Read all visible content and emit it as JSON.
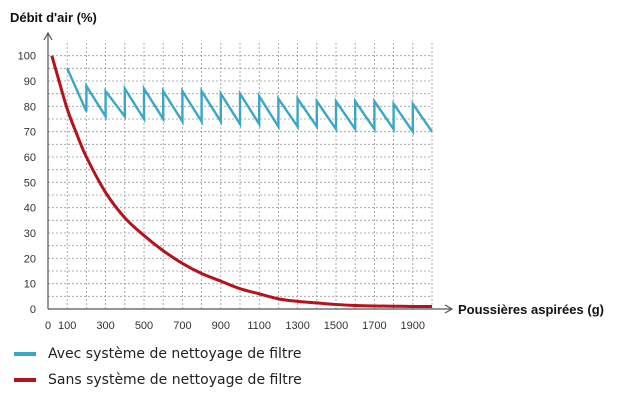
{
  "chart_data": {
    "type": "line",
    "ylabel": "Débit d'air (%)",
    "xlabel": "Poussières aspirées (g)",
    "xlim": [
      0,
      2000
    ],
    "ylim": [
      0,
      105
    ],
    "grid": true,
    "legend_position": "bottom-left",
    "x_ticks": [
      0,
      100,
      300,
      500,
      700,
      900,
      1100,
      1300,
      1500,
      1700,
      1900
    ],
    "y_ticks": [
      0,
      10,
      20,
      30,
      40,
      50,
      60,
      70,
      80,
      90,
      100
    ],
    "series": [
      {
        "name": "Avec système de nettoyage de filtre",
        "color": "#3aa6c8",
        "x": [
          100,
          200,
          200,
          300,
          300,
          400,
          400,
          500,
          500,
          600,
          600,
          700,
          700,
          800,
          800,
          900,
          900,
          1000,
          1000,
          1100,
          1100,
          1200,
          1200,
          1300,
          1300,
          1400,
          1400,
          1500,
          1500,
          1600,
          1600,
          1700,
          1700,
          1800,
          1800,
          1900,
          1900,
          2000
        ],
        "y": [
          95,
          78,
          88,
          76,
          86,
          76,
          87,
          75,
          87,
          75,
          86,
          74,
          86,
          74,
          86,
          74,
          85,
          73,
          85,
          73,
          84,
          72,
          83,
          72,
          83,
          72,
          82,
          71,
          82,
          71,
          82,
          71,
          82,
          71,
          81,
          70,
          81,
          70
        ]
      },
      {
        "name": "Sans système de nettoyage de filtre",
        "color": "#b5121b",
        "x": [
          20,
          50,
          100,
          150,
          200,
          300,
          400,
          500,
          600,
          700,
          800,
          900,
          1000,
          1100,
          1200,
          1300,
          1400,
          1500,
          1600,
          1700,
          1800,
          1900,
          2000
        ],
        "y": [
          100,
          92,
          79,
          69,
          60,
          46,
          36,
          29,
          23,
          18,
          14,
          11,
          8,
          6,
          4,
          3,
          2.4,
          1.8,
          1.4,
          1.2,
          1.1,
          1.0,
          1.0
        ]
      }
    ]
  }
}
